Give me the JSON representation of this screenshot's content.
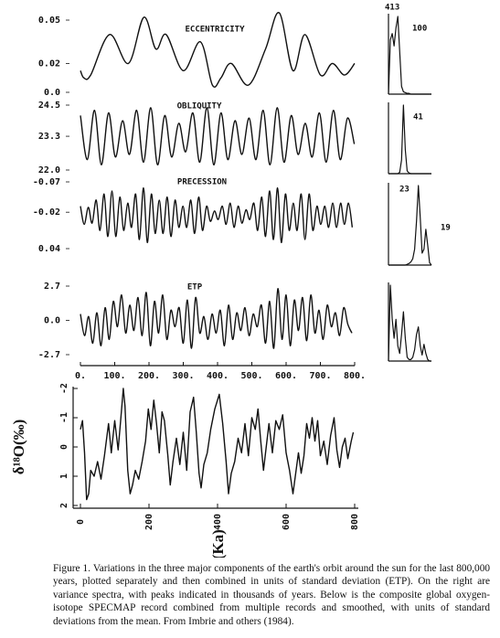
{
  "chart_data": [
    {
      "type": "line",
      "title": "ECCENTRICITY",
      "x": [
        0,
        10,
        30,
        85,
        140,
        185,
        220,
        250,
        300,
        350,
        385,
        410,
        440,
        490,
        540,
        580,
        620,
        655,
        700,
        735,
        770,
        800
      ],
      "values": [
        0.015,
        0.01,
        0.012,
        0.04,
        0.02,
        0.052,
        0.03,
        0.04,
        0.015,
        0.035,
        0.005,
        0.01,
        0.02,
        0.005,
        0.03,
        0.055,
        0.015,
        0.04,
        0.012,
        0.02,
        0.012,
        0.02
      ],
      "xlim": [
        0,
        800
      ],
      "ylim": [
        0,
        0.05
      ],
      "yticks": [
        0.05,
        0.02,
        {
          "value": 0,
          "label": "0.0"
        }
      ],
      "color": "#111111"
    },
    {
      "type": "line",
      "title": "OBLIQUITY",
      "x": [
        0,
        20,
        41,
        61,
        82,
        102,
        123,
        143,
        164,
        184,
        205,
        225,
        246,
        266,
        287,
        307,
        328,
        348,
        369,
        389,
        410,
        430,
        451,
        471,
        492,
        512,
        533,
        553,
        574,
        594,
        615,
        635,
        656,
        676,
        697,
        717,
        738,
        758,
        779,
        799
      ],
      "values": [
        24.1,
        22.4,
        24.3,
        22.2,
        24.2,
        22.5,
        23.9,
        22.6,
        24.3,
        22.3,
        24.4,
        22.2,
        24.1,
        22.5,
        23.8,
        22.7,
        24.2,
        22.3,
        24.4,
        22.2,
        24.2,
        22.4,
        23.9,
        22.6,
        24.0,
        22.4,
        24.3,
        22.2,
        24.4,
        22.3,
        24.1,
        22.6,
        23.8,
        22.5,
        24.2,
        22.3,
        24.3,
        22.4,
        24.0,
        23.0
      ],
      "xlim": [
        0,
        800
      ],
      "ylim": [
        22,
        24.5
      ],
      "yticks": [
        24.5,
        23.3,
        {
          "value": 22,
          "label": "22.0"
        }
      ],
      "color": "#111111"
    },
    {
      "type": "line",
      "title": "PRECESSION",
      "x": [
        0,
        11,
        23,
        34,
        46,
        57,
        69,
        80,
        92,
        103,
        115,
        126,
        138,
        149,
        161,
        172,
        184,
        195,
        207,
        218,
        230,
        241,
        253,
        264,
        276,
        287,
        299,
        310,
        322,
        333,
        345,
        356,
        368,
        379,
        391,
        402,
        414,
        425,
        437,
        448,
        460,
        471,
        483,
        494,
        506,
        517,
        529,
        540,
        552,
        563,
        575,
        586,
        598,
        609,
        621,
        632,
        644,
        655,
        667,
        678,
        690,
        701,
        713,
        724,
        736,
        747,
        759,
        770,
        782,
        793
      ],
      "values": [
        -0.03,
        0.0,
        -0.028,
        -0.002,
        -0.04,
        0.01,
        -0.05,
        0.02,
        -0.055,
        0.02,
        -0.045,
        0.01,
        -0.035,
        0.005,
        -0.05,
        0.025,
        -0.06,
        0.03,
        -0.05,
        0.015,
        -0.04,
        0.015,
        -0.045,
        0.02,
        -0.04,
        0.005,
        -0.03,
        0.005,
        -0.04,
        0.015,
        -0.045,
        0.01,
        -0.03,
        -0.005,
        -0.022,
        -0.008,
        -0.03,
        0.0,
        -0.035,
        0.005,
        -0.03,
        -0.002,
        -0.024,
        -0.008,
        -0.035,
        0.01,
        -0.045,
        0.02,
        -0.055,
        0.025,
        -0.06,
        0.03,
        -0.05,
        0.01,
        -0.035,
        0.01,
        -0.05,
        0.025,
        -0.05,
        0.01,
        -0.03,
        0.0,
        -0.03,
        0.005,
        -0.035,
        0.005,
        -0.035,
        0.0,
        -0.035,
        0.005
      ],
      "xlim": [
        0,
        800
      ],
      "ylim": [
        0.04,
        -0.07
      ],
      "yticks": [
        -0.07,
        -0.02,
        0.04
      ],
      "color": "#111111"
    },
    {
      "type": "line",
      "title": "ETP",
      "x": [
        0,
        12,
        24,
        36,
        48,
        60,
        72,
        84,
        96,
        108,
        120,
        132,
        144,
        156,
        168,
        180,
        192,
        204,
        216,
        228,
        240,
        252,
        264,
        276,
        288,
        300,
        312,
        324,
        336,
        348,
        360,
        372,
        384,
        396,
        408,
        420,
        432,
        444,
        456,
        468,
        480,
        492,
        504,
        516,
        528,
        540,
        552,
        564,
        576,
        588,
        600,
        612,
        624,
        636,
        648,
        660,
        672,
        684,
        696,
        708,
        720,
        732,
        744,
        756,
        768,
        780,
        792
      ],
      "values": [
        0.5,
        -1.2,
        0.3,
        -1.8,
        0.6,
        -2.0,
        1.0,
        -1.5,
        1.5,
        -0.5,
        2.0,
        -1.0,
        1.2,
        -0.8,
        1.8,
        -1.2,
        2.2,
        -2.0,
        1.5,
        -1.0,
        2.0,
        -1.5,
        0.8,
        -0.5,
        1.0,
        -1.8,
        1.6,
        -2.2,
        1.8,
        -1.0,
        0.3,
        -1.5,
        0.5,
        -1.0,
        0.8,
        -2.0,
        1.2,
        -1.5,
        0.6,
        -0.8,
        1.0,
        -1.2,
        0.5,
        -0.5,
        1.2,
        -1.8,
        1.5,
        -2.2,
        2.5,
        -1.5,
        2.0,
        -2.0,
        1.6,
        -0.8,
        1.8,
        -1.6,
        2.0,
        -1.0,
        0.8,
        -1.5,
        1.2,
        -0.5,
        0.6,
        -1.2,
        1.0,
        -0.3,
        -1.0
      ],
      "xlim": [
        0,
        800
      ],
      "ylim": [
        -2.7,
        2.7
      ],
      "yticks": [
        2.7,
        {
          "value": 0,
          "label": "0.0"
        },
        -2.7
      ],
      "xticks": [
        {
          "value": 0,
          "label": "0."
        },
        {
          "value": 100,
          "label": "100."
        },
        {
          "value": 200,
          "label": "200."
        },
        {
          "value": 300,
          "label": "300."
        },
        {
          "value": 400,
          "label": "400."
        },
        {
          "value": 500,
          "label": "500."
        },
        {
          "value": 600,
          "label": "600."
        },
        {
          "value": 700,
          "label": "700."
        },
        {
          "value": 800,
          "label": "800."
        }
      ],
      "color": "#111111"
    },
    {
      "type": "line",
      "annotations": [
        "413",
        "100"
      ],
      "ylim": [
        0,
        1
      ],
      "values": [
        0,
        0.7,
        0.78,
        0.62,
        0.85,
        1.0,
        0.55,
        0.1,
        0.03,
        0.02,
        0.01,
        0.01,
        0,
        0,
        0,
        0,
        0,
        0,
        0,
        0,
        0,
        0,
        0,
        0
      ],
      "color": "#111111"
    },
    {
      "type": "line",
      "annotations": [
        "41"
      ],
      "ylim": [
        0,
        1
      ],
      "values": [
        0,
        0,
        0,
        0,
        0,
        0,
        0.02,
        0.2,
        1.0,
        0.35,
        0.04,
        0.01,
        0,
        0,
        0,
        0,
        0,
        0,
        0,
        0,
        0,
        0,
        0,
        0
      ],
      "color": "#111111"
    },
    {
      "type": "line",
      "annotations": [
        "23",
        "19"
      ],
      "ylim": [
        0,
        1
      ],
      "values": [
        0,
        0,
        0,
        0,
        0,
        0,
        0,
        0,
        0,
        0,
        0.01,
        0.02,
        0.04,
        0.08,
        0.2,
        0.55,
        1.0,
        0.6,
        0.15,
        0.2,
        0.45,
        0.25,
        0.03,
        0
      ],
      "color": "#111111"
    },
    {
      "type": "line",
      "ylim": [
        0,
        1
      ],
      "values": [
        0,
        1.0,
        0.55,
        0.3,
        0.55,
        0.2,
        0.1,
        0.35,
        0.65,
        0.3,
        0.05,
        0.02,
        0.02,
        0.05,
        0.15,
        0.35,
        0.45,
        0.2,
        0.08,
        0.22,
        0.1,
        0.02,
        0,
        0
      ],
      "color": "#111111"
    },
    {
      "type": "line",
      "xlabel": "Age (Ka)",
      "ylabel": "δ¹⁸O(‰)",
      "x": [
        0,
        6,
        12,
        18,
        24,
        30,
        40,
        50,
        60,
        70,
        82,
        90,
        100,
        110,
        118,
        125,
        130,
        138,
        145,
        152,
        160,
        170,
        180,
        190,
        198,
        206,
        214,
        222,
        230,
        238,
        245,
        255,
        262,
        270,
        280,
        290,
        300,
        310,
        320,
        330,
        338,
        346,
        352,
        360,
        370,
        380,
        392,
        405,
        415,
        425,
        432,
        440,
        450,
        460,
        470,
        480,
        490,
        500,
        510,
        518,
        526,
        534,
        542,
        550,
        560,
        570,
        580,
        590,
        600,
        610,
        620,
        628,
        636,
        644,
        652,
        660,
        668,
        676,
        684,
        692,
        700,
        710,
        720,
        730,
        740,
        748,
        756,
        764,
        772,
        780,
        790,
        796
      ],
      "values": [
        -0.6,
        -0.9,
        0.2,
        1.8,
        1.6,
        0.8,
        1.0,
        0.5,
        1.1,
        0.3,
        -0.8,
        0.2,
        -0.9,
        0.1,
        -1.0,
        -2.0,
        -1.4,
        0.8,
        1.6,
        1.3,
        0.8,
        1.1,
        0.5,
        -0.2,
        -1.3,
        -0.6,
        -1.6,
        -0.8,
        0.2,
        -1.2,
        -0.9,
        0.3,
        1.3,
        0.5,
        -0.3,
        0.6,
        -0.5,
        0.8,
        -1.2,
        -1.7,
        -0.5,
        0.9,
        1.4,
        0.6,
        0.2,
        -0.6,
        -1.3,
        -1.8,
        -0.8,
        0.5,
        1.6,
        0.9,
        0.5,
        -0.3,
        0.2,
        -0.8,
        0.3,
        -1.0,
        -0.6,
        -1.3,
        -0.2,
        0.8,
        0.0,
        -0.8,
        0.2,
        -0.9,
        -0.6,
        -1.1,
        0.2,
        0.8,
        1.6,
        0.9,
        0.2,
        0.9,
        0.3,
        -0.8,
        -0.3,
        -1.0,
        -0.2,
        -0.9,
        0.3,
        -0.2,
        0.6,
        -0.4,
        -1.0,
        0.1,
        0.7,
        0.0,
        -0.3,
        0.4,
        -0.2,
        -0.5
      ],
      "xlim": [
        0,
        800
      ],
      "xticks": [
        0,
        200,
        400,
        600,
        800
      ],
      "ylim": [
        2,
        -2
      ],
      "yticks": [
        -2,
        -1,
        0,
        1,
        2
      ],
      "color": "#111111"
    }
  ],
  "caption": "Figure 1. Variations in the three major components of the earth's orbit around the sun for the last 800,000 years, plotted separately and then combined in units of standard deviation (ETP). On the right are variance spectra, with peaks indicated in thousands of years. Below is the composite global oxygen-isotope SPECMAP record combined from multiple records and smoothed, with units of standard deviations from the mean. From Imbrie and others (1984)."
}
